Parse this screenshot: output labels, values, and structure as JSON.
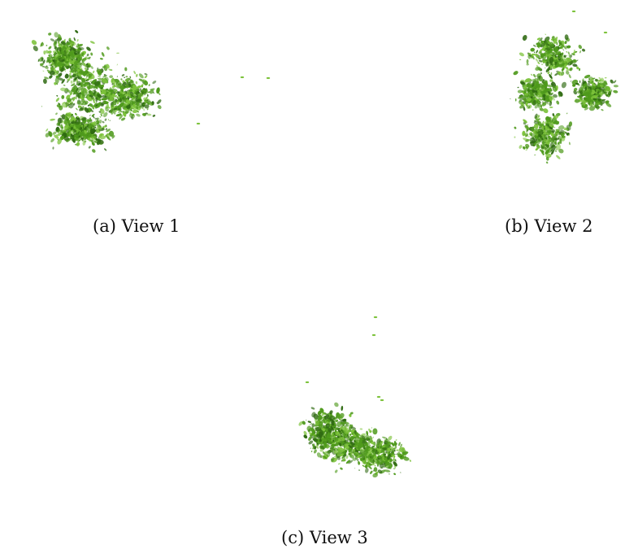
{
  "figure": {
    "panels": [
      {
        "caption": "(a) View 1",
        "colors": {
          "leaf_dark": "#2f6a12",
          "leaf_mid": "#4f9a1c",
          "leaf_light": "#7cc23a"
        }
      },
      {
        "caption": "(b) View 2",
        "colors": {
          "leaf_dark": "#2f6a12",
          "leaf_mid": "#4f9a1c",
          "leaf_light": "#7cc23a"
        }
      },
      {
        "caption": "(c) View 3",
        "colors": {
          "leaf_dark": "#2f6a12",
          "leaf_mid": "#4f9a1c",
          "leaf_light": "#7cc23a"
        }
      }
    ]
  }
}
